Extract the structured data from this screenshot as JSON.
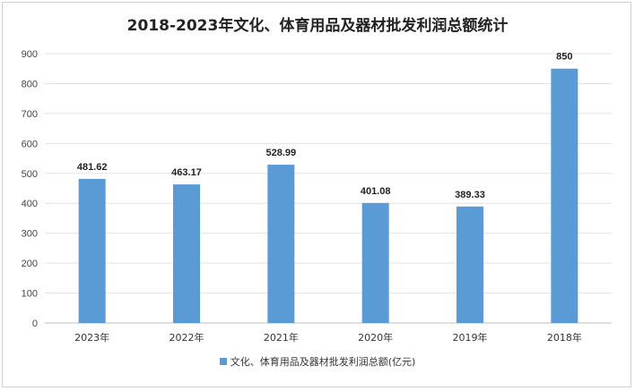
{
  "chart_data": {
    "type": "bar",
    "title": "2018-2023年文化、体育用品及器材批发利润总额统计",
    "categories": [
      "2023年",
      "2022年",
      "2021年",
      "2020年",
      "2019年",
      "2018年"
    ],
    "series": [
      {
        "name": "文化、体育用品及器材批发利润总额(亿元)",
        "values": [
          481.62,
          463.17,
          528.99,
          401.08,
          389.33,
          850
        ],
        "labels": [
          "481.62",
          "463.17",
          "528.99",
          "401.08",
          "389.33",
          "850"
        ]
      }
    ],
    "yticks": [
      0,
      100,
      200,
      300,
      400,
      500,
      600,
      700,
      800,
      900
    ],
    "ylim": [
      0,
      900
    ],
    "grid": true,
    "legend_position": "bottom",
    "bar_color": "#5b9bd5"
  }
}
